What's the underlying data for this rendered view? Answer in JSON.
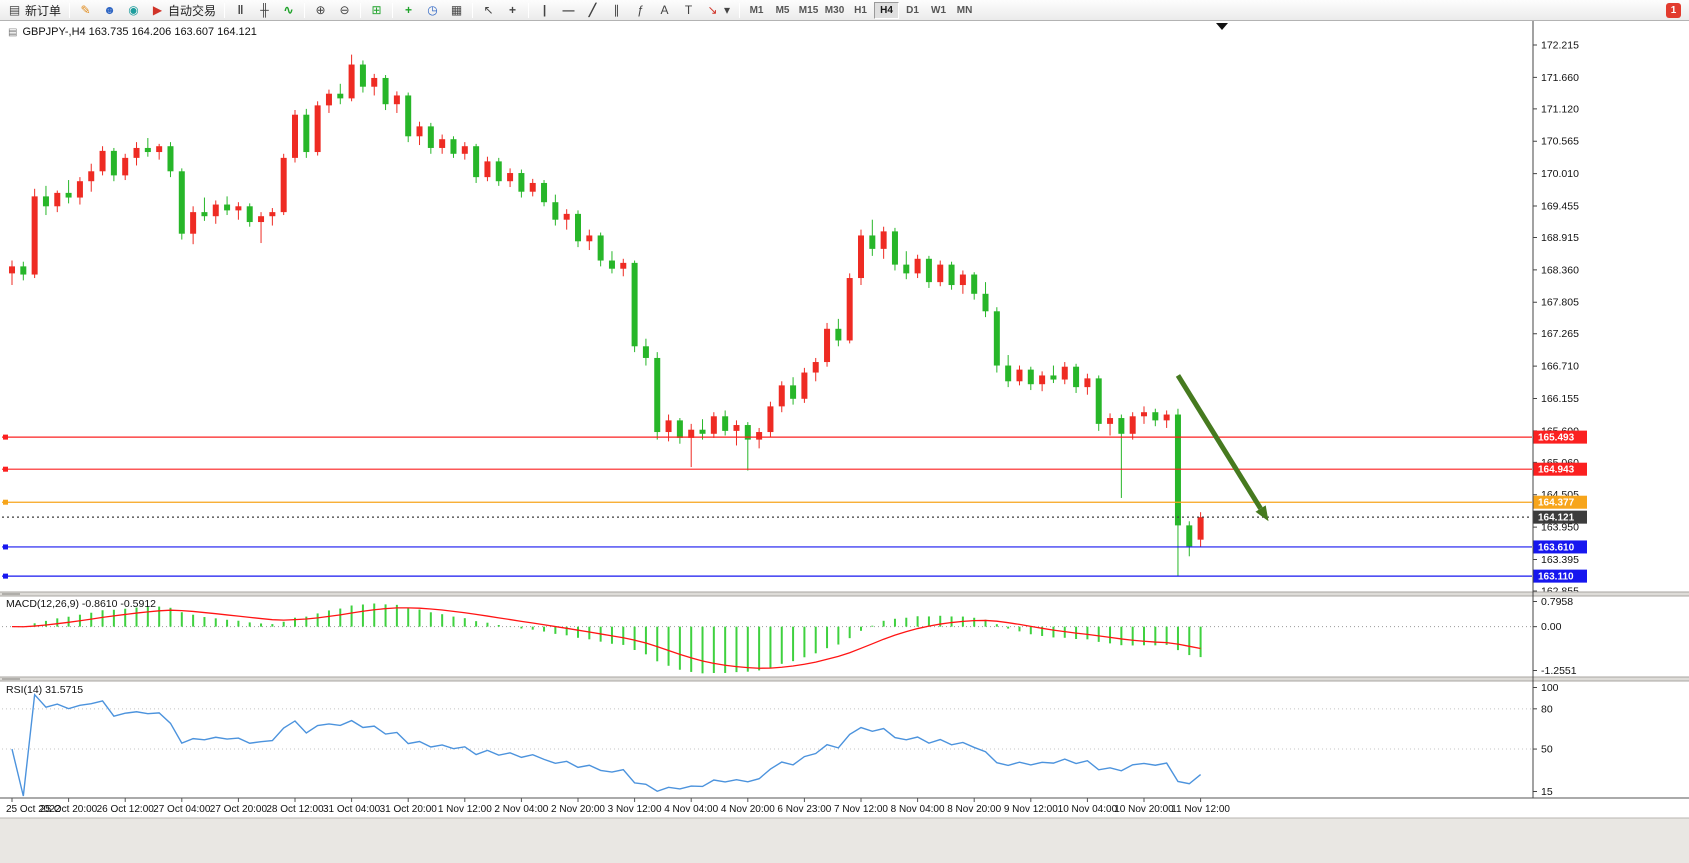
{
  "toolbar": {
    "new_order_label": "新订单",
    "autotrading_label": "自动交易",
    "timeframes": [
      "M1",
      "M5",
      "M15",
      "M30",
      "H1",
      "H4",
      "D1",
      "W1",
      "MN"
    ],
    "active_timeframe": "H4",
    "notification_badge": "1"
  },
  "icons": {
    "new_order": "▤",
    "metaeditor": "✎",
    "profiles": "☻",
    "terminal": "◉",
    "autotrading": "▶",
    "bar_chart": "‖",
    "candle_chart": "╫",
    "line_chart": "∿",
    "zoom_in": "⊕",
    "zoom_out": "⊖",
    "tile_windows": "⊞",
    "indicators": "+",
    "periods": "◷",
    "templates": "▦",
    "cursor": "↖",
    "crosshair": "+",
    "vertical_line": "|",
    "horizontal_line": "—",
    "trendline": "╱",
    "channel": "∥",
    "fibonacci": "ƒ",
    "text": "A",
    "text_label": "T",
    "arrows": "↘",
    "caret": "▾",
    "chart_title": "▤"
  },
  "chart": {
    "title": "GBPJPY-,H4 163.735 164.206 163.607 164.121",
    "symbol": "GBPJPY-",
    "timeframe": "H4",
    "open": "163.735",
    "high": "164.206",
    "low": "163.607",
    "close": "164.121"
  },
  "indicators": {
    "macd_label": "MACD(12,26,9) -0.8610 -0.5912",
    "rsi_label": "RSI(14) 31.5715"
  },
  "chart_data": {
    "type": "candlestick",
    "symbol": "GBPJPY-",
    "timeframe": "H4",
    "colors": {
      "bull": "#ee2b23",
      "bear": "#27b629",
      "macd_hist": "#3fd13f",
      "macd_signal": "#ff1414",
      "rsi_line": "#4c93dd",
      "arrow": "#467a1f",
      "line_red": "#fb2020",
      "line_orange": "#f7a51b",
      "line_blue": "#1717ef",
      "current_price": "#3c3c3c"
    },
    "price_axis_labels": [
      172.215,
      171.66,
      171.12,
      170.565,
      170.01,
      169.455,
      168.915,
      168.36,
      167.805,
      167.265,
      166.71,
      166.155,
      165.6,
      165.06,
      164.505,
      163.95,
      163.395,
      162.855
    ],
    "x_labels": [
      "25 Oct 2022",
      "25 Oct 20:00",
      "26 Oct 12:00",
      "27 Oct 04:00",
      "27 Oct 20:00",
      "28 Oct 12:00",
      "31 Oct 04:00",
      "31 Oct 20:00",
      "1 Nov 12:00",
      "2 Nov 04:00",
      "2 Nov 20:00",
      "3 Nov 12:00",
      "4 Nov 04:00",
      "4 Nov 20:00",
      "6 Nov 23:00",
      "7 Nov 12:00",
      "8 Nov 04:00",
      "8 Nov 20:00",
      "9 Nov 12:00",
      "10 Nov 04:00",
      "10 Nov 20:00",
      "11 Nov 12:00"
    ],
    "candles_per_label": 5,
    "candles": [
      [
        168.3,
        168.52,
        168.1,
        168.42
      ],
      [
        168.42,
        168.5,
        168.18,
        168.28
      ],
      [
        168.28,
        169.75,
        168.22,
        169.62
      ],
      [
        169.62,
        169.8,
        169.3,
        169.45
      ],
      [
        169.45,
        169.72,
        169.35,
        169.68
      ],
      [
        169.68,
        169.9,
        169.5,
        169.6
      ],
      [
        169.6,
        169.95,
        169.48,
        169.88
      ],
      [
        169.88,
        170.18,
        169.7,
        170.05
      ],
      [
        170.05,
        170.48,
        169.98,
        170.4
      ],
      [
        170.4,
        170.45,
        169.88,
        169.98
      ],
      [
        169.98,
        170.35,
        169.9,
        170.28
      ],
      [
        170.28,
        170.55,
        170.15,
        170.45
      ],
      [
        170.45,
        170.62,
        170.3,
        170.38
      ],
      [
        170.38,
        170.52,
        170.25,
        170.48
      ],
      [
        170.48,
        170.55,
        169.95,
        170.05
      ],
      [
        170.05,
        170.1,
        168.88,
        168.98
      ],
      [
        168.98,
        169.45,
        168.8,
        169.35
      ],
      [
        169.35,
        169.6,
        169.2,
        169.28
      ],
      [
        169.28,
        169.55,
        169.15,
        169.48
      ],
      [
        169.48,
        169.62,
        169.3,
        169.38
      ],
      [
        169.38,
        169.52,
        169.22,
        169.45
      ],
      [
        169.45,
        169.5,
        169.1,
        169.18
      ],
      [
        169.18,
        169.35,
        168.82,
        169.28
      ],
      [
        169.28,
        169.42,
        169.12,
        169.35
      ],
      [
        169.35,
        170.35,
        169.3,
        170.28
      ],
      [
        170.28,
        171.1,
        170.2,
        171.02
      ],
      [
        171.02,
        171.12,
        170.28,
        170.38
      ],
      [
        170.38,
        171.25,
        170.32,
        171.18
      ],
      [
        171.18,
        171.45,
        171.05,
        171.38
      ],
      [
        171.38,
        171.55,
        171.2,
        171.3
      ],
      [
        171.3,
        172.05,
        171.25,
        171.88
      ],
      [
        171.88,
        171.95,
        171.4,
        171.5
      ],
      [
        171.5,
        171.72,
        171.35,
        171.65
      ],
      [
        171.65,
        171.7,
        171.1,
        171.2
      ],
      [
        171.2,
        171.42,
        171.05,
        171.35
      ],
      [
        171.35,
        171.4,
        170.55,
        170.65
      ],
      [
        170.65,
        170.9,
        170.5,
        170.82
      ],
      [
        170.82,
        170.88,
        170.35,
        170.45
      ],
      [
        170.45,
        170.68,
        170.35,
        170.6
      ],
      [
        170.6,
        170.65,
        170.28,
        170.35
      ],
      [
        170.35,
        170.55,
        170.25,
        170.48
      ],
      [
        170.48,
        170.52,
        169.85,
        169.95
      ],
      [
        169.95,
        170.3,
        169.88,
        170.22
      ],
      [
        170.22,
        170.28,
        169.8,
        169.88
      ],
      [
        169.88,
        170.1,
        169.78,
        170.02
      ],
      [
        170.02,
        170.08,
        169.6,
        169.7
      ],
      [
        169.7,
        169.92,
        169.62,
        169.85
      ],
      [
        169.85,
        169.9,
        169.45,
        169.52
      ],
      [
        169.52,
        169.65,
        169.12,
        169.22
      ],
      [
        169.22,
        169.4,
        169.05,
        169.32
      ],
      [
        169.32,
        169.38,
        168.75,
        168.85
      ],
      [
        168.85,
        169.05,
        168.7,
        168.95
      ],
      [
        168.95,
        169.0,
        168.42,
        168.52
      ],
      [
        168.52,
        168.68,
        168.3,
        168.38
      ],
      [
        168.38,
        168.55,
        168.25,
        168.48
      ],
      [
        168.48,
        168.52,
        166.95,
        167.05
      ],
      [
        167.05,
        167.18,
        166.72,
        166.85
      ],
      [
        166.85,
        166.95,
        165.45,
        165.58
      ],
      [
        165.58,
        165.88,
        165.42,
        165.78
      ],
      [
        165.78,
        165.82,
        165.38,
        165.48
      ],
      [
        165.48,
        165.72,
        164.98,
        165.62
      ],
      [
        165.62,
        165.8,
        165.45,
        165.55
      ],
      [
        165.55,
        165.92,
        165.48,
        165.85
      ],
      [
        165.85,
        165.95,
        165.52,
        165.6
      ],
      [
        165.6,
        165.78,
        165.35,
        165.7
      ],
      [
        165.7,
        165.75,
        164.92,
        165.45
      ],
      [
        165.45,
        165.65,
        165.3,
        165.58
      ],
      [
        165.58,
        166.1,
        165.5,
        166.02
      ],
      [
        166.02,
        166.45,
        165.92,
        166.38
      ],
      [
        166.38,
        166.52,
        166.05,
        166.15
      ],
      [
        166.15,
        166.68,
        166.08,
        166.6
      ],
      [
        166.6,
        166.85,
        166.45,
        166.78
      ],
      [
        166.78,
        167.45,
        166.7,
        167.35
      ],
      [
        167.35,
        167.52,
        167.05,
        167.15
      ],
      [
        167.15,
        168.3,
        167.1,
        168.22
      ],
      [
        168.22,
        169.05,
        168.1,
        168.95
      ],
      [
        168.95,
        169.22,
        168.6,
        168.72
      ],
      [
        168.72,
        169.1,
        168.55,
        169.02
      ],
      [
        169.02,
        169.08,
        168.35,
        168.45
      ],
      [
        168.45,
        168.68,
        168.2,
        168.3
      ],
      [
        168.3,
        168.62,
        168.22,
        168.55
      ],
      [
        168.55,
        168.6,
        168.05,
        168.15
      ],
      [
        168.15,
        168.52,
        168.08,
        168.45
      ],
      [
        168.45,
        168.5,
        168.02,
        168.1
      ],
      [
        168.1,
        168.35,
        167.95,
        168.28
      ],
      [
        168.28,
        168.32,
        167.85,
        167.95
      ],
      [
        167.95,
        168.15,
        167.55,
        167.65
      ],
      [
        167.65,
        167.72,
        166.6,
        166.72
      ],
      [
        166.72,
        166.9,
        166.35,
        166.45
      ],
      [
        166.45,
        166.72,
        166.38,
        166.65
      ],
      [
        166.65,
        166.7,
        166.3,
        166.4
      ],
      [
        166.4,
        166.62,
        166.28,
        166.55
      ],
      [
        166.55,
        166.72,
        166.42,
        166.48
      ],
      [
        166.48,
        166.78,
        166.4,
        166.7
      ],
      [
        166.7,
        166.75,
        166.25,
        166.35
      ],
      [
        166.35,
        166.58,
        166.22,
        166.5
      ],
      [
        166.5,
        166.55,
        165.6,
        165.72
      ],
      [
        165.72,
        165.9,
        165.52,
        165.82
      ],
      [
        165.82,
        165.88,
        164.45,
        165.55
      ],
      [
        165.55,
        165.92,
        165.45,
        165.85
      ],
      [
        165.85,
        166.02,
        165.72,
        165.92
      ],
      [
        165.92,
        165.98,
        165.68,
        165.78
      ],
      [
        165.78,
        165.95,
        165.65,
        165.88
      ],
      [
        165.88,
        165.98,
        163.11,
        163.98
      ],
      [
        163.98,
        164.05,
        163.45,
        163.62
      ],
      [
        163.735,
        164.206,
        163.607,
        164.121
      ]
    ],
    "horizontal_lines": [
      {
        "price": 165.493,
        "label": "165.493",
        "color": "#fb2020",
        "style": "solid",
        "role": "resistance-line"
      },
      {
        "price": 164.943,
        "label": "164.943",
        "color": "#fb2020",
        "style": "solid",
        "role": "resistance-line"
      },
      {
        "price": 164.377,
        "label": "164.377",
        "color": "#f7a51b",
        "style": "solid",
        "role": "support-line"
      },
      {
        "price": 164.121,
        "label": "164.121",
        "color": "#3c3c3c",
        "style": "dotted",
        "role": "current-price-line"
      },
      {
        "price": 163.61,
        "label": "163.610",
        "color": "#1717ef",
        "style": "solid",
        "role": "support-line"
      },
      {
        "price": 163.11,
        "label": "163.110",
        "color": "#1717ef",
        "style": "solid",
        "role": "support-line"
      }
    ],
    "arrow_annotation": {
      "from_candle": 103,
      "from_price": 166.55,
      "to_candle": 111,
      "to_price": 164.05
    },
    "macd": {
      "params": [
        12,
        26,
        9
      ],
      "value": -0.861,
      "signal": -0.5912,
      "axis_labels": [
        "0.7958",
        "0.00",
        "-1.2551"
      ]
    },
    "rsi": {
      "period": 14,
      "value": 31.5715,
      "axis_labels": [
        "100",
        "80",
        "50",
        "15"
      ],
      "levels": [
        80,
        50
      ]
    }
  }
}
